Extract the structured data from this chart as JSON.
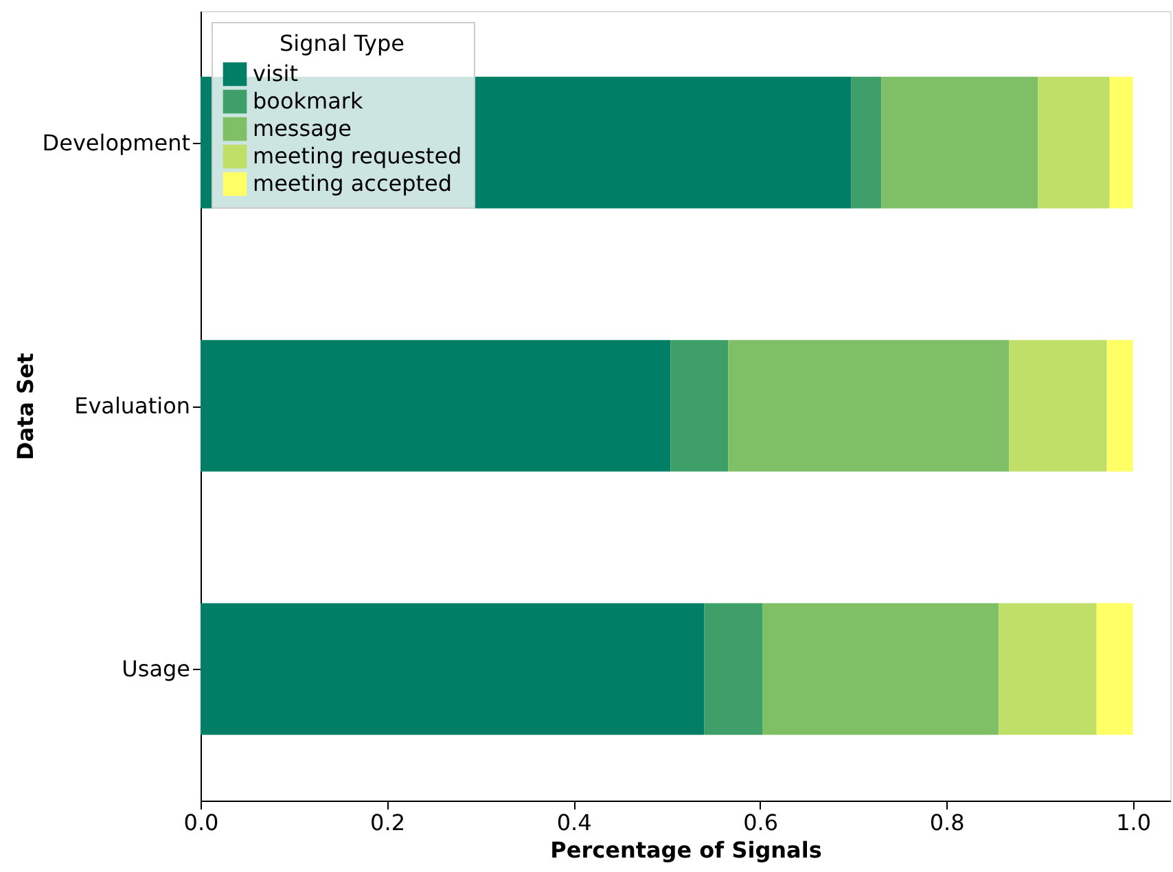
{
  "chart_data": {
    "type": "bar",
    "orientation": "horizontal",
    "stacked": true,
    "categories": [
      "Development",
      "Evaluation",
      "Usage"
    ],
    "series": [
      {
        "name": "visit",
        "color": "#007f66",
        "values": [
          0.698,
          0.504,
          0.54
        ]
      },
      {
        "name": "bookmark",
        "color": "#3f9f69",
        "values": [
          0.032,
          0.062,
          0.063
        ]
      },
      {
        "name": "message",
        "color": "#7fbf66",
        "values": [
          0.168,
          0.301,
          0.253
        ]
      },
      {
        "name": "meeting requested",
        "color": "#bfdf69",
        "values": [
          0.077,
          0.105,
          0.105
        ]
      },
      {
        "name": "meeting accepted",
        "color": "#ffff66",
        "values": [
          0.025,
          0.028,
          0.039
        ]
      }
    ],
    "xlabel": "Percentage of Signals",
    "ylabel": "Data Set",
    "legend_title": "Signal Type",
    "legend": "top left",
    "xlim": [
      0,
      1.04
    ],
    "xticks": [
      {
        "value": 0,
        "label": "0.0"
      },
      {
        "value": 0.2,
        "label": "0.2"
      },
      {
        "value": 0.4,
        "label": "0.4"
      },
      {
        "value": 0.6,
        "label": "0.6"
      },
      {
        "value": 0.8,
        "label": "0.8"
      },
      {
        "value": 1,
        "label": "1.0"
      }
    ],
    "grid": false
  }
}
